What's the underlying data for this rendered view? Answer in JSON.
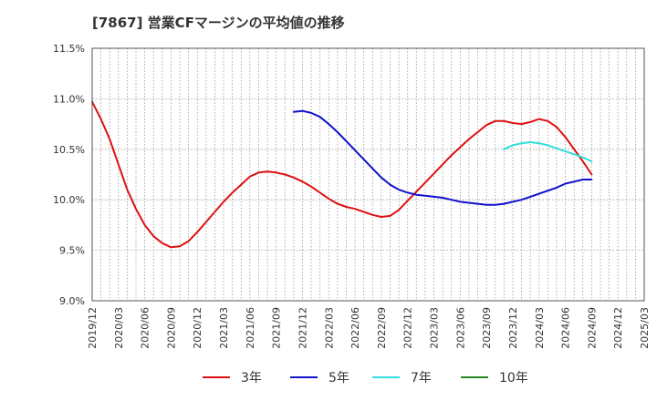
{
  "title": "[7867]  営業CFマージンの平均値の推移",
  "chart_data": {
    "type": "line",
    "title": "[7867]  営業CFマージンの平均値の推移",
    "xlabel": "",
    "ylabel": "",
    "ylim": [
      9.0,
      11.5
    ],
    "yticks": [
      "11.5%",
      "11.0%",
      "10.5%",
      "10.0%",
      "9.5%",
      "9.0%"
    ],
    "ytick_values": [
      11.5,
      11.0,
      10.5,
      10.0,
      9.5,
      9.0
    ],
    "x_tick_labels": [
      "2019/12",
      "2020/03",
      "2020/06",
      "2020/09",
      "2020/12",
      "2021/03",
      "2021/06",
      "2021/09",
      "2021/12",
      "2022/03",
      "2022/06",
      "2022/09",
      "2022/12",
      "2023/03",
      "2023/06",
      "2023/09",
      "2023/12",
      "2024/03",
      "2024/06",
      "2024/09",
      "2024/12",
      "2025/03"
    ],
    "grid": true,
    "legend_position": "bottom",
    "series": [
      {
        "name": "3年",
        "color": "#dd1111",
        "points": [
          [
            "2019/12",
            10.97
          ],
          [
            "2020/01",
            10.8
          ],
          [
            "2020/02",
            10.6
          ],
          [
            "2020/03",
            10.35
          ],
          [
            "2020/04",
            10.1
          ],
          [
            "2020/05",
            9.91
          ],
          [
            "2020/06",
            9.75
          ],
          [
            "2020/07",
            9.64
          ],
          [
            "2020/08",
            9.57
          ],
          [
            "2020/09",
            9.53
          ],
          [
            "2020/10",
            9.54
          ],
          [
            "2020/11",
            9.59
          ],
          [
            "2020/12",
            9.68
          ],
          [
            "2021/01",
            9.78
          ],
          [
            "2021/02",
            9.88
          ],
          [
            "2021/03",
            9.98
          ],
          [
            "2021/04",
            10.07
          ],
          [
            "2021/05",
            10.15
          ],
          [
            "2021/06",
            10.23
          ],
          [
            "2021/07",
            10.27
          ],
          [
            "2021/08",
            10.28
          ],
          [
            "2021/09",
            10.27
          ],
          [
            "2021/10",
            10.25
          ],
          [
            "2021/11",
            10.22
          ],
          [
            "2021/12",
            10.18
          ],
          [
            "2022/01",
            10.13
          ],
          [
            "2022/02",
            10.07
          ],
          [
            "2022/03",
            10.01
          ],
          [
            "2022/04",
            9.96
          ],
          [
            "2022/05",
            9.93
          ],
          [
            "2022/06",
            9.91
          ],
          [
            "2022/07",
            9.88
          ],
          [
            "2022/08",
            9.85
          ],
          [
            "2022/09",
            9.83
          ],
          [
            "2022/10",
            9.84
          ],
          [
            "2022/11",
            9.9
          ],
          [
            "2022/12",
            9.99
          ],
          [
            "2023/01",
            10.08
          ],
          [
            "2023/02",
            10.17
          ],
          [
            "2023/03",
            10.26
          ],
          [
            "2023/04",
            10.35
          ],
          [
            "2023/05",
            10.44
          ],
          [
            "2023/06",
            10.52
          ],
          [
            "2023/07",
            10.6
          ],
          [
            "2023/08",
            10.67
          ],
          [
            "2023/09",
            10.74
          ],
          [
            "2023/10",
            10.78
          ],
          [
            "2023/11",
            10.78
          ],
          [
            "2023/12",
            10.76
          ],
          [
            "2024/01",
            10.75
          ],
          [
            "2024/02",
            10.77
          ],
          [
            "2024/03",
            10.8
          ],
          [
            "2024/04",
            10.78
          ],
          [
            "2024/05",
            10.72
          ],
          [
            "2024/06",
            10.62
          ],
          [
            "2024/07",
            10.5
          ],
          [
            "2024/08",
            10.38
          ],
          [
            "2024/09",
            10.25
          ]
        ]
      },
      {
        "name": "5年",
        "color": "#1111cc",
        "points": [
          [
            "2021/11",
            10.87
          ],
          [
            "2021/12",
            10.88
          ],
          [
            "2022/01",
            10.86
          ],
          [
            "2022/02",
            10.82
          ],
          [
            "2022/03",
            10.75
          ],
          [
            "2022/04",
            10.67
          ],
          [
            "2022/05",
            10.58
          ],
          [
            "2022/06",
            10.49
          ],
          [
            "2022/07",
            10.4
          ],
          [
            "2022/08",
            10.31
          ],
          [
            "2022/09",
            10.22
          ],
          [
            "2022/10",
            10.15
          ],
          [
            "2022/11",
            10.1
          ],
          [
            "2022/12",
            10.07
          ],
          [
            "2023/01",
            10.05
          ],
          [
            "2023/02",
            10.04
          ],
          [
            "2023/03",
            10.03
          ],
          [
            "2023/04",
            10.02
          ],
          [
            "2023/05",
            10.0
          ],
          [
            "2023/06",
            9.98
          ],
          [
            "2023/07",
            9.97
          ],
          [
            "2023/08",
            9.96
          ],
          [
            "2023/09",
            9.95
          ],
          [
            "2023/10",
            9.95
          ],
          [
            "2023/11",
            9.96
          ],
          [
            "2023/12",
            9.98
          ],
          [
            "2024/01",
            10.0
          ],
          [
            "2024/02",
            10.03
          ],
          [
            "2024/03",
            10.06
          ],
          [
            "2024/04",
            10.09
          ],
          [
            "2024/05",
            10.12
          ],
          [
            "2024/06",
            10.16
          ],
          [
            "2024/07",
            10.18
          ],
          [
            "2024/08",
            10.2
          ],
          [
            "2024/09",
            10.2
          ]
        ]
      },
      {
        "name": "7年",
        "color": "#33dddd",
        "points": [
          [
            "2023/11",
            10.5
          ],
          [
            "2023/12",
            10.54
          ],
          [
            "2024/01",
            10.56
          ],
          [
            "2024/02",
            10.57
          ],
          [
            "2024/03",
            10.56
          ],
          [
            "2024/04",
            10.54
          ],
          [
            "2024/05",
            10.51
          ],
          [
            "2024/06",
            10.48
          ],
          [
            "2024/07",
            10.45
          ],
          [
            "2024/08",
            10.42
          ],
          [
            "2024/09",
            10.38
          ]
        ]
      },
      {
        "name": "10年",
        "color": "#228822",
        "points": []
      }
    ]
  }
}
